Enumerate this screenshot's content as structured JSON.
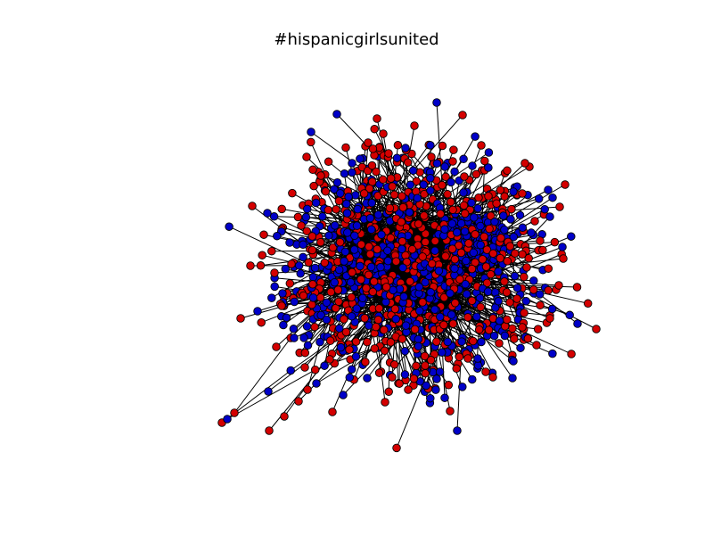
{
  "title": "#hispanicgirlsunited",
  "graph": {
    "type": "network",
    "node_classes": [
      {
        "fill": "#d40000"
      },
      {
        "fill": "#0000c8"
      }
    ],
    "edge_color": "#000000",
    "node_outline": "#000000"
  }
}
